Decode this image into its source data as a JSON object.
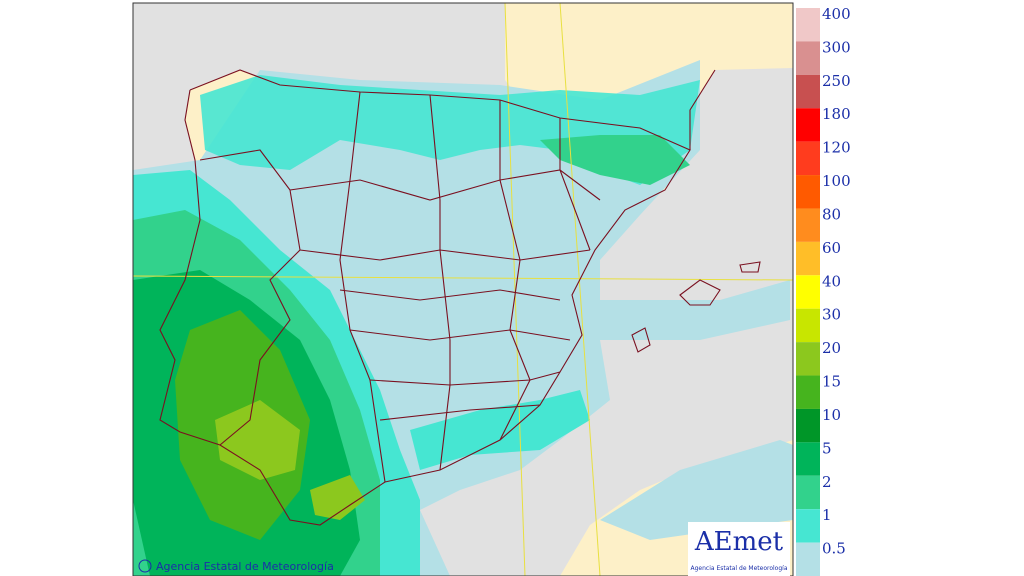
{
  "credit": "Agencia Estatal de Meteorología",
  "logo": {
    "name": "AEmet",
    "subtitle": "Agencia Estatal de Meteorología"
  },
  "legend": {
    "levels": [
      400,
      300,
      250,
      180,
      120,
      100,
      80,
      60,
      40,
      30,
      20,
      15,
      10,
      5,
      2,
      1,
      0.5
    ],
    "colors": [
      "#f0c8c8",
      "#d99090",
      "#c85050",
      "#ff0000",
      "#ff3c1e",
      "#ff5a00",
      "#ff8c1e",
      "#ffbe28",
      "#ffff00",
      "#c8e600",
      "#8cc81e",
      "#46b41e",
      "#009628",
      "#00b45a",
      "#32d28c",
      "#46e6d2",
      "#b4e0e6"
    ]
  }
}
